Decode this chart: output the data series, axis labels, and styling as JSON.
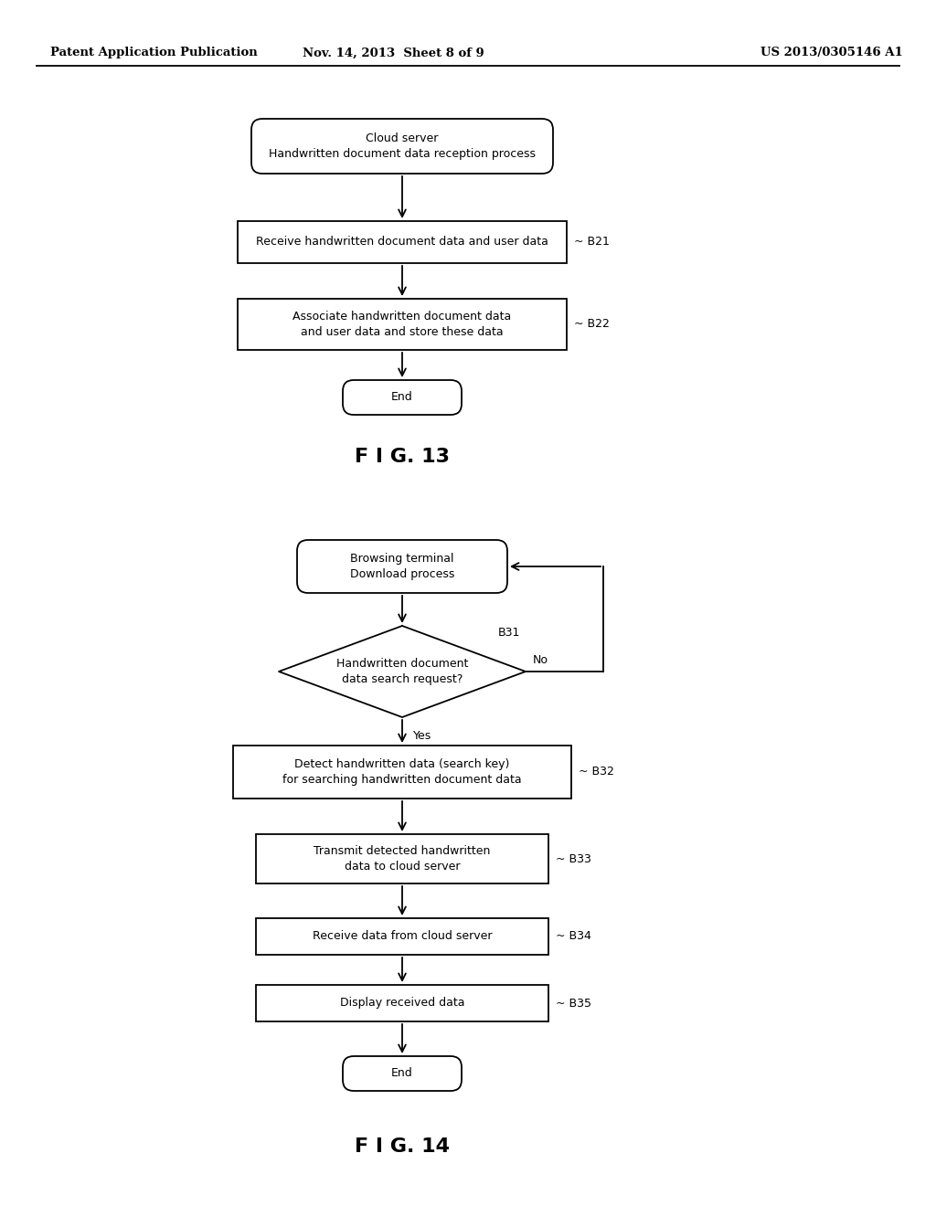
{
  "bg_color": "#ffffff",
  "header_left": "Patent Application Publication",
  "header_mid": "Nov. 14, 2013  Sheet 8 of 9",
  "header_right": "US 2013/0305146 A1",
  "fig13_title": "F I G. 13",
  "fig14_title": "F I G. 14"
}
